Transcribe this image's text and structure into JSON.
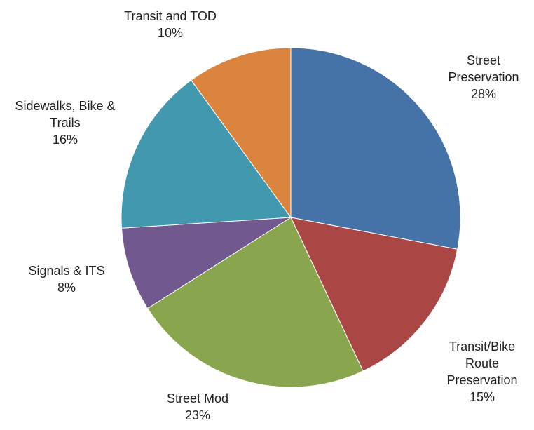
{
  "chart_data": {
    "type": "pie",
    "categories": [
      "Street Preservation",
      "Transit/Bike Route Preservation",
      "Street Mod",
      "Signals & ITS",
      "Sidewalks, Bike & Trails",
      "Transit and TOD"
    ],
    "values": [
      28,
      15,
      23,
      8,
      16,
      10
    ],
    "value_labels": [
      "28%",
      "15%",
      "23%",
      "8%",
      "16%",
      "10%"
    ],
    "colors": [
      "#4572a7",
      "#aa4643",
      "#89a54e",
      "#71588f",
      "#4198af",
      "#db843d"
    ]
  }
}
